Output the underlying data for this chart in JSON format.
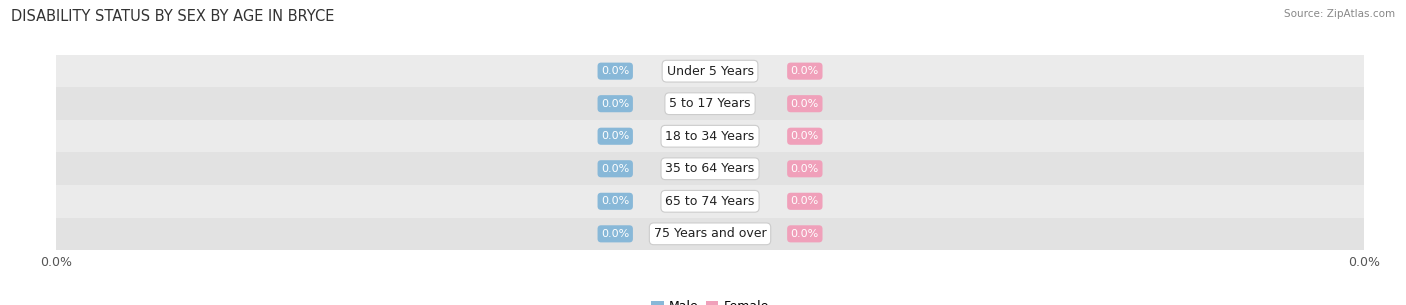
{
  "title": "DISABILITY STATUS BY SEX BY AGE IN BRYCE",
  "source": "Source: ZipAtlas.com",
  "categories": [
    "Under 5 Years",
    "5 to 17 Years",
    "18 to 34 Years",
    "35 to 64 Years",
    "65 to 74 Years",
    "75 Years and over"
  ],
  "male_values": [
    0.0,
    0.0,
    0.0,
    0.0,
    0.0,
    0.0
  ],
  "female_values": [
    0.0,
    0.0,
    0.0,
    0.0,
    0.0,
    0.0
  ],
  "male_color": "#88b8d8",
  "female_color": "#f0a0ba",
  "row_colors": [
    "#ebebeb",
    "#e2e2e2",
    "#ebebeb",
    "#e2e2e2",
    "#ebebeb",
    "#e2e2e2"
  ],
  "xlim_left": "0.0%",
  "xlim_right": "0.0%",
  "title_fontsize": 10.5,
  "source_fontsize": 7.5,
  "cat_fontsize": 9,
  "val_fontsize": 8,
  "tick_fontsize": 9,
  "background_color": "#ffffff"
}
